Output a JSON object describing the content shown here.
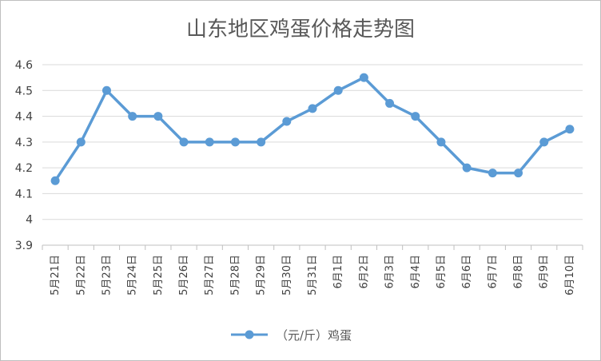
{
  "chart_data": {
    "type": "line",
    "title": "山东地区鸡蛋价格走势图",
    "categories": [
      "5月21日",
      "5月22日",
      "5月23日",
      "5月24日",
      "5月25日",
      "5月26日",
      "5月27日",
      "5月28日",
      "5月29日",
      "5月30日",
      "5月31日",
      "6月1日",
      "6月2日",
      "6月3日",
      "6月4日",
      "6月5日",
      "6月6日",
      "6月7日",
      "6月8日",
      "6月9日",
      "6月10日"
    ],
    "series": [
      {
        "name": "（元/斤）鸡蛋",
        "values": [
          4.15,
          4.3,
          4.5,
          4.4,
          4.4,
          4.3,
          4.3,
          4.3,
          4.3,
          4.38,
          4.43,
          4.5,
          4.55,
          4.45,
          4.4,
          4.3,
          4.2,
          4.18,
          4.18,
          4.3,
          4.35
        ]
      }
    ],
    "ylim": [
      3.9,
      4.6
    ],
    "yticks": [
      "4.6",
      "4.5",
      "4.4",
      "4.3",
      "4.2",
      "4.1",
      "4",
      "3.9"
    ],
    "grid": true,
    "legend": "bottom",
    "colors": {
      "series": "#5b9bd5",
      "grid": "#d9d9d9",
      "axis": "#bfbfbf"
    }
  }
}
